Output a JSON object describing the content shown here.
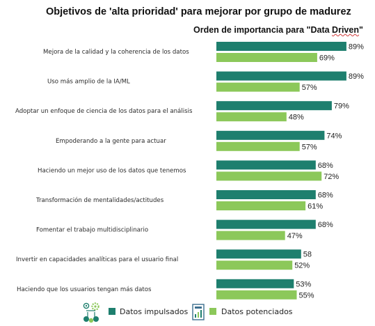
{
  "title": "Objetivos de 'alta prioridad' para mejorar por grupo de madurez",
  "subtitle_prefix": "Orden de importancia para \"Data ",
  "subtitle_squiggle": "Driven",
  "subtitle_suffix": "\"",
  "colors": {
    "impulsados": "#1e7f6e",
    "potenciados": "#8cc85a"
  },
  "chart_data": {
    "type": "bar",
    "orientation": "horizontal",
    "title": "Objetivos de 'alta prioridad' para mejorar por grupo de madurez",
    "subtitle": "Orden de importancia para \"Data Driven\"",
    "categories": [
      "Mejora de la calidad y la coherencia de los datos",
      "Uso más amplio de la IA/ML",
      "Adoptar un enfoque de ciencia de los datos para el análisis",
      "Empoderando a la gente para actuar",
      "Haciendo un mejor uso de los datos que tenemos",
      "Transformación de mentalidades/actitudes",
      "Fomentar el trabajo multidisciplinario",
      "Invertir en capacidades analíticas para el usuario final",
      "Haciendo que los usuarios tengan más datos"
    ],
    "series": [
      {
        "name": "Datos impulsados",
        "values": [
          89,
          89,
          79,
          74,
          68,
          68,
          68,
          58,
          53
        ],
        "labels": [
          "89%",
          "89%",
          "79%",
          "74%",
          "68%",
          "68%",
          "68%",
          "58",
          "53%"
        ]
      },
      {
        "name": "Datos potenciados",
        "values": [
          69,
          57,
          48,
          57,
          72,
          61,
          47,
          52,
          55
        ],
        "labels": [
          "69%",
          "57%",
          "48%",
          "57%",
          "72%",
          "61%",
          "47%",
          "52%",
          "55%"
        ]
      }
    ],
    "xlim": [
      0,
      100
    ],
    "grid": false,
    "legend_position": "bottom"
  },
  "legend": [
    {
      "label": "Datos impulsados",
      "icon": "gears-network-icon"
    },
    {
      "label": "Datos potenciados",
      "icon": "document-chart-icon"
    }
  ]
}
